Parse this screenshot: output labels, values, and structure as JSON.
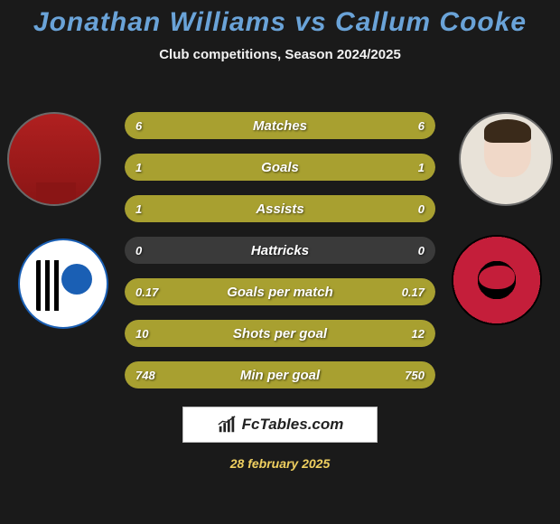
{
  "title": "Jonathan Williams vs Callum Cooke",
  "title_color": "#6aa3d8",
  "title_fontsize": 30,
  "subtitle": "Club competitions, Season 2024/2025",
  "subtitle_color": "#f2f2f2",
  "subtitle_fontsize": 15,
  "date": "28 february 2025",
  "date_color": "#f0d060",
  "date_fontsize": 14,
  "brand_label": "FcTables.com",
  "brand_fontsize": 17,
  "brand_color": "#222222",
  "background_color": "#1a1a1a",
  "row_base_color": "#3a3a3a",
  "row_fill_color": "#a8a030",
  "label_color": "#ffffff",
  "value_color": "#ffffff",
  "label_fontsize": 15,
  "value_fontsize": 13,
  "stats": [
    {
      "label": "Matches",
      "left_val": "6",
      "right_val": "6",
      "left_pct": 50,
      "right_pct": 50
    },
    {
      "label": "Goals",
      "left_val": "1",
      "right_val": "1",
      "left_pct": 50,
      "right_pct": 50
    },
    {
      "label": "Assists",
      "left_val": "1",
      "right_val": "0",
      "left_pct": 100,
      "right_pct": 0
    },
    {
      "label": "Hattricks",
      "left_val": "0",
      "right_val": "0",
      "left_pct": 0,
      "right_pct": 0
    },
    {
      "label": "Goals per match",
      "left_val": "0.17",
      "right_val": "0.17",
      "left_pct": 50,
      "right_pct": 50
    },
    {
      "label": "Shots per goal",
      "left_val": "10",
      "right_val": "12",
      "left_pct": 45,
      "right_pct": 55
    },
    {
      "label": "Min per goal",
      "left_val": "748",
      "right_val": "750",
      "left_pct": 50,
      "right_pct": 50
    }
  ]
}
